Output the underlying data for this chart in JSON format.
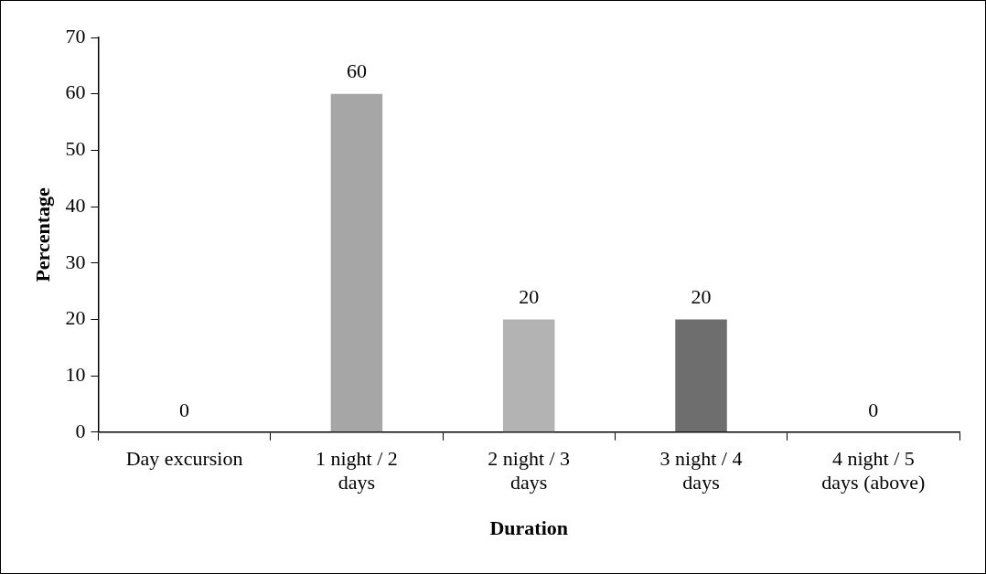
{
  "chart_data": {
    "type": "bar",
    "xlabel": "Duration",
    "ylabel": "Percentage",
    "categories": [
      "Day excursion",
      "1 night / 2 days",
      "2 night / 3 days",
      "3 night / 4 days",
      "4 night / 5 days (above)"
    ],
    "values": [
      0,
      60,
      20,
      20,
      0
    ],
    "colors": [
      "#a6a6a6",
      "#a6a6a6",
      "#b3b3b3",
      "#6e6e6e",
      "#a6a6a6"
    ],
    "ylim": [
      0,
      70
    ],
    "yticks": [
      0,
      10,
      20,
      30,
      40,
      50,
      60,
      70
    ],
    "grid": false,
    "legend": false,
    "data_labels": true
  }
}
